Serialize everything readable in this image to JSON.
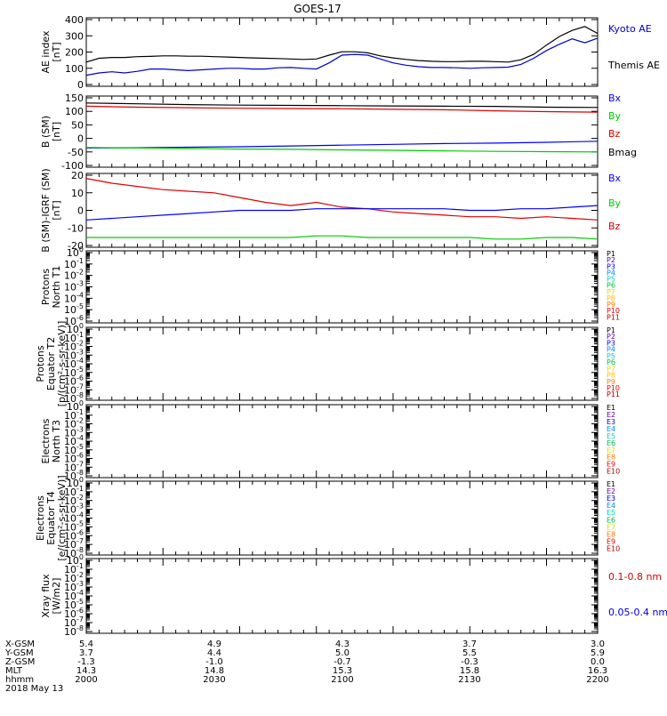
{
  "title": "GOES-17",
  "x_axis": {
    "range": [
      "2000",
      "2200"
    ],
    "ticks": [
      "2000",
      "2030",
      "2100",
      "2130",
      "2200"
    ]
  },
  "colors": {
    "black": "#000000",
    "blue": "#0000ff",
    "green": "#00cc00",
    "red": "#dd0000"
  },
  "panels": [
    {
      "id": "ae",
      "ylabel": [
        "AE index",
        "[nT]"
      ],
      "yticks": [
        "0",
        "100",
        "200",
        "300",
        "400"
      ],
      "legend": [
        {
          "text": "Kyoto AE",
          "color": "#0000cc"
        },
        {
          "text": "Themis AE",
          "color": "#000000"
        }
      ]
    },
    {
      "id": "b",
      "ylabel": [
        "B (SM)",
        "[nT]"
      ],
      "yticks": [
        "-100",
        "-50",
        "0",
        "50",
        "100",
        "150"
      ],
      "legend": [
        {
          "text": "Bx",
          "color": "#0000ff"
        },
        {
          "text": "By",
          "color": "#00cc00"
        },
        {
          "text": "Bz",
          "color": "#dd0000"
        },
        {
          "text": "Bmag",
          "color": "#000000"
        }
      ]
    },
    {
      "id": "db",
      "ylabel": [
        "B (SM)-IGRF (SM)",
        "[nT]"
      ],
      "yticks": [
        "-20",
        "-10",
        "0",
        "10",
        "20"
      ],
      "legend": [
        {
          "text": "Bx",
          "color": "#0000ff"
        },
        {
          "text": "By",
          "color": "#00cc00"
        },
        {
          "text": "Bz",
          "color": "#dd0000"
        }
      ]
    },
    {
      "id": "p1",
      "ylabel": [
        "Protons",
        "North T1"
      ],
      "ylabel_extra": "",
      "yticks": [
        "10-6",
        "10-5",
        "10-4",
        "10-3",
        "10-2",
        "10-1",
        "100"
      ],
      "legend": [
        {
          "text": "P1",
          "color": "#000000"
        },
        {
          "text": "P2",
          "color": "#6600aa"
        },
        {
          "text": "P3",
          "color": "#0000cc"
        },
        {
          "text": "P4",
          "color": "#0088ff"
        },
        {
          "text": "P5",
          "color": "#00cccc"
        },
        {
          "text": "P6",
          "color": "#00bb44"
        },
        {
          "text": "P7",
          "color": "#dddd00"
        },
        {
          "text": "P8",
          "color": "#ffbb00"
        },
        {
          "text": "P9",
          "color": "#ff7700"
        },
        {
          "text": "P10",
          "color": "#dd0000"
        },
        {
          "text": "P11",
          "color": "#aa0000"
        }
      ]
    },
    {
      "id": "p2",
      "ylabel": [
        "Protons",
        "Equator T2",
        "[p/(cm²-s-sr-keV)]"
      ],
      "yticks": [
        "10-8",
        "10-7",
        "10-6",
        "10-5",
        "10-4",
        "10-3",
        "10-2",
        "10-1",
        "100"
      ],
      "legend": [
        {
          "text": "P1",
          "color": "#000000"
        },
        {
          "text": "P2",
          "color": "#6600aa"
        },
        {
          "text": "P3",
          "color": "#0000cc"
        },
        {
          "text": "P4",
          "color": "#0088ff"
        },
        {
          "text": "P5",
          "color": "#00cccc"
        },
        {
          "text": "P6",
          "color": "#00bb44"
        },
        {
          "text": "P7",
          "color": "#dddd00"
        },
        {
          "text": "P8",
          "color": "#ffbb00"
        },
        {
          "text": "P9",
          "color": "#ff7700"
        },
        {
          "text": "P10",
          "color": "#dd0000"
        },
        {
          "text": "P11",
          "color": "#aa0000"
        }
      ]
    },
    {
      "id": "e1",
      "ylabel": [
        "Electrons",
        "North T3"
      ],
      "yticks": [
        "10-8",
        "10-7",
        "10-6",
        "10-5",
        "10-4",
        "10-3",
        "10-2",
        "10-1",
        "100"
      ],
      "legend": [
        {
          "text": "E1",
          "color": "#000000"
        },
        {
          "text": "E2",
          "color": "#6600aa"
        },
        {
          "text": "E3",
          "color": "#0000cc"
        },
        {
          "text": "E4",
          "color": "#0088ff"
        },
        {
          "text": "E5",
          "color": "#00cccc"
        },
        {
          "text": "E6",
          "color": "#00bb44"
        },
        {
          "text": "E7",
          "color": "#dddd00"
        },
        {
          "text": "E8",
          "color": "#ff7700"
        },
        {
          "text": "E9",
          "color": "#dd0000"
        },
        {
          "text": "E10",
          "color": "#aa0000"
        }
      ]
    },
    {
      "id": "e2",
      "ylabel": [
        "Electrons",
        "Equator T4",
        "[e/(cm²-s-sr-keV)]"
      ],
      "yticks": [
        "10-8",
        "10-7",
        "10-6",
        "10-5",
        "10-4",
        "10-3",
        "10-2",
        "10-1",
        "100"
      ],
      "legend": [
        {
          "text": "E1",
          "color": "#000000"
        },
        {
          "text": "E2",
          "color": "#6600aa"
        },
        {
          "text": "E3",
          "color": "#0000cc"
        },
        {
          "text": "E4",
          "color": "#0088ff"
        },
        {
          "text": "E5",
          "color": "#00cccc"
        },
        {
          "text": "E6",
          "color": "#00bb44"
        },
        {
          "text": "E7",
          "color": "#dddd00"
        },
        {
          "text": "E8",
          "color": "#ff7700"
        },
        {
          "text": "E9",
          "color": "#dd0000"
        },
        {
          "text": "E10",
          "color": "#aa0000"
        }
      ]
    },
    {
      "id": "xray",
      "ylabel": [
        "Xray flux",
        "[W/m2]"
      ],
      "yticks": [
        "10-8",
        "10-7",
        "10-6",
        "10-5",
        "10-4",
        "10-3",
        "10-2",
        "10-1",
        "100"
      ],
      "legend": [
        {
          "text": "0.1-0.8 nm",
          "color": "#dd0000"
        },
        {
          "text": "0.05-0.4 nm",
          "color": "#0000cc"
        }
      ]
    }
  ],
  "ephemeris": [
    {
      "label": "X-GSM",
      "values": [
        "5.4",
        "4.9",
        "4.3",
        "3.7",
        "3.0"
      ]
    },
    {
      "label": "Y-GSM",
      "values": [
        "3.7",
        "4.4",
        "5.0",
        "5.5",
        "5.9"
      ]
    },
    {
      "label": "Z-GSM",
      "values": [
        "-1.3",
        "-1.0",
        "-0.7",
        "-0.3",
        "0.0"
      ]
    },
    {
      "label": "MLT",
      "values": [
        "14.3",
        "14.8",
        "15.3",
        "15.8",
        "16.3"
      ]
    },
    {
      "label": "hhmm",
      "values": [
        "2000",
        "2030",
        "2100",
        "2130",
        "2200"
      ]
    }
  ],
  "date": "2018 May 13",
  "chart_data": [
    {
      "type": "line",
      "panel": "ae",
      "ylim": [
        0,
        420
      ],
      "x_minutes": [
        0,
        5,
        10,
        15,
        20,
        25,
        30,
        35,
        40,
        45,
        50,
        55,
        60,
        65,
        70,
        75,
        80,
        85,
        90,
        95,
        100,
        105,
        110,
        115,
        120,
        125,
        130,
        135,
        140,
        145,
        150,
        155,
        160,
        165,
        170,
        175,
        180,
        185,
        190,
        195,
        200
      ],
      "series": [
        {
          "name": "Themis AE",
          "color": "#000000",
          "values": [
            145,
            170,
            175,
            175,
            180,
            182,
            185,
            185,
            183,
            183,
            180,
            178,
            175,
            172,
            170,
            168,
            165,
            162,
            165,
            190,
            212,
            212,
            205,
            185,
            172,
            162,
            155,
            150,
            148,
            148,
            150,
            150,
            148,
            145,
            160,
            195,
            255,
            310,
            350,
            375,
            330
          ]
        },
        {
          "name": "Kyoto AE",
          "color": "#0000cc",
          "values": [
            60,
            75,
            82,
            75,
            85,
            100,
            100,
            95,
            90,
            95,
            100,
            105,
            105,
            100,
            100,
            108,
            110,
            105,
            100,
            140,
            190,
            195,
            190,
            165,
            140,
            125,
            115,
            110,
            110,
            108,
            105,
            108,
            110,
            112,
            130,
            170,
            220,
            260,
            295,
            270,
            300
          ]
        }
      ]
    },
    {
      "type": "line",
      "panel": "b",
      "ylim": [
        -110,
        150
      ],
      "x_minutes": [
        0,
        20,
        40,
        60,
        80,
        100,
        120,
        140,
        160,
        180,
        200
      ],
      "series": [
        {
          "name": "Bmag",
          "color": "#000000",
          "values": [
            130,
            127,
            124,
            122,
            121,
            120,
            119,
            118,
            117,
            114,
            113
          ]
        },
        {
          "name": "Bz",
          "color": "#dd0000",
          "values": [
            118,
            114,
            112,
            110,
            109,
            108,
            106,
            104,
            100,
            97,
            95
          ]
        },
        {
          "name": "Bx",
          "color": "#0000ff",
          "values": [
            -43,
            -42,
            -40,
            -38,
            -35,
            -32,
            -29,
            -26,
            -24,
            -21,
            -17
          ]
        },
        {
          "name": "By",
          "color": "#00cc00",
          "values": [
            -41,
            -43,
            -45,
            -47,
            -48,
            -50,
            -52,
            -54,
            -56,
            -57,
            -58
          ]
        }
      ]
    },
    {
      "type": "line",
      "panel": "db",
      "ylim": [
        -22,
        22
      ],
      "x_minutes": [
        0,
        10,
        20,
        30,
        40,
        50,
        60,
        70,
        80,
        90,
        100,
        110,
        120,
        130,
        140,
        150,
        160,
        170,
        180,
        190,
        200
      ],
      "series": [
        {
          "name": "Bz",
          "color": "#dd0000",
          "values": [
            20,
            17,
            15,
            13,
            12,
            11,
            8,
            5,
            3,
            5,
            2,
            1,
            -1,
            -2,
            -3,
            -4,
            -4,
            -5,
            -4,
            -5,
            -6
          ]
        },
        {
          "name": "Bx",
          "color": "#0000ff",
          "values": [
            -6,
            -5,
            -4,
            -3,
            -2,
            -1,
            0,
            0,
            0,
            1,
            1,
            1,
            1,
            1,
            1,
            0,
            0,
            1,
            1,
            2,
            3
          ]
        },
        {
          "name": "By",
          "color": "#00cc00",
          "values": [
            -17,
            -17,
            -17,
            -17,
            -17,
            -17,
            -17,
            -17,
            -17,
            -16,
            -16,
            -17,
            -17,
            -17,
            -17,
            -17,
            -18,
            -18,
            -17,
            -17,
            -18
          ]
        }
      ]
    }
  ]
}
